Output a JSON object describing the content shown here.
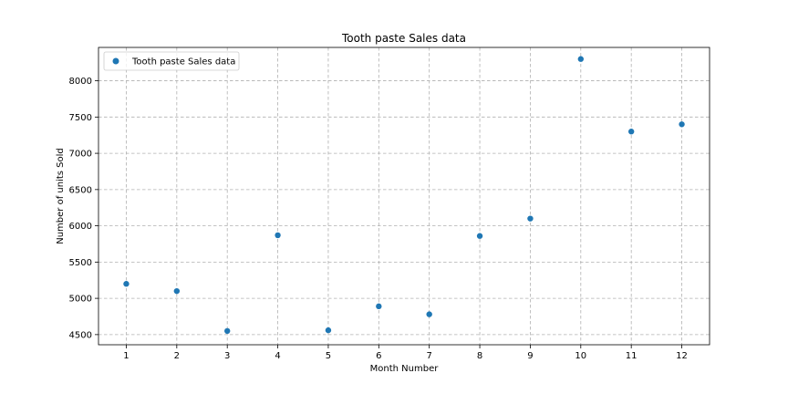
{
  "chart_data": {
    "type": "scatter",
    "title": "Tooth paste Sales data",
    "xlabel": "Month Number",
    "ylabel": "Number of units Sold",
    "xlim": [
      0.45,
      12.55
    ],
    "ylim": [
      4360,
      8460
    ],
    "x_ticks": [
      1,
      2,
      3,
      4,
      5,
      6,
      7,
      8,
      9,
      10,
      11,
      12
    ],
    "y_ticks": [
      4500,
      5000,
      5500,
      6000,
      6500,
      7000,
      7500,
      8000
    ],
    "grid": true,
    "legend_position": "top-left",
    "series": [
      {
        "name": "Tooth paste Sales data",
        "color": "#1f77b4",
        "marker": "circle",
        "x": [
          1,
          2,
          3,
          4,
          5,
          6,
          7,
          8,
          9,
          10,
          11,
          12
        ],
        "y": [
          5200,
          5100,
          4550,
          5870,
          4560,
          4890,
          4780,
          5860,
          6100,
          8300,
          7300,
          7400
        ]
      }
    ]
  }
}
